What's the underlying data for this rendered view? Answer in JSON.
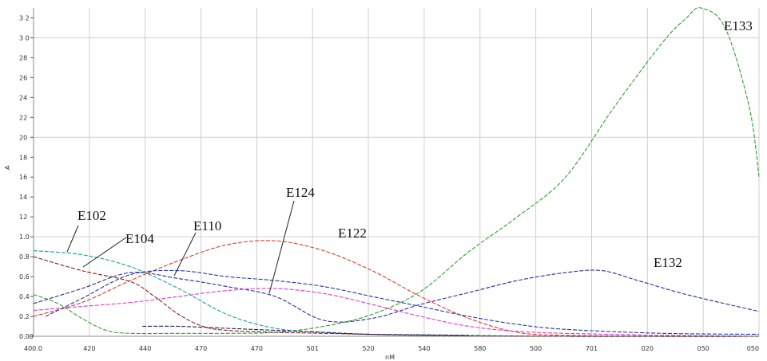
{
  "chart_data": {
    "type": "line",
    "title": "",
    "xlabel": "nM",
    "ylabel": "A",
    "x_tick_labels": [
      "400.0",
      "420",
      "440",
      "470",
      "470",
      "501",
      "520",
      "540",
      "580",
      "500",
      "701",
      "020",
      "050",
      "050"
    ],
    "y_tick_labels": [
      "0.00",
      "0.2",
      "0.4",
      "0.6",
      "0.8",
      "1.0",
      "12",
      "14",
      "16",
      "18",
      "20",
      "22",
      "24",
      "26",
      "28",
      "3 0",
      "3 2"
    ],
    "ylim": [
      0,
      3.3
    ],
    "grid": true,
    "legend": "none",
    "series": [
      {
        "name": "E133",
        "color": "#2ca02c",
        "points": [
          [
            400,
            0.42
          ],
          [
            410,
            0.33
          ],
          [
            420,
            0.18
          ],
          [
            430,
            0.06
          ],
          [
            440,
            0.03
          ],
          [
            460,
            0.03
          ],
          [
            480,
            0.03
          ],
          [
            500,
            0.04
          ],
          [
            520,
            0.1
          ],
          [
            540,
            0.22
          ],
          [
            560,
            0.45
          ],
          [
            580,
            0.85
          ],
          [
            600,
            1.2
          ],
          [
            620,
            1.6
          ],
          [
            640,
            2.3
          ],
          [
            660,
            2.95
          ],
          [
            670,
            3.2
          ],
          [
            676,
            3.3
          ],
          [
            686,
            3.1
          ],
          [
            696,
            2.3
          ],
          [
            700,
            1.6
          ]
        ]
      },
      {
        "name": "E132",
        "color": "#2a2a9c",
        "points": [
          [
            400,
            0.33
          ],
          [
            420,
            0.48
          ],
          [
            440,
            0.64
          ],
          [
            460,
            0.58
          ],
          [
            480,
            0.5
          ],
          [
            500,
            0.4
          ],
          [
            520,
            0.16
          ],
          [
            540,
            0.18
          ],
          [
            560,
            0.32
          ],
          [
            580,
            0.44
          ],
          [
            600,
            0.56
          ],
          [
            620,
            0.64
          ],
          [
            635,
            0.66
          ],
          [
            650,
            0.56
          ],
          [
            670,
            0.42
          ],
          [
            700,
            0.25
          ]
        ]
      },
      {
        "name": "E122",
        "color": "#e03a2a",
        "points": [
          [
            400,
            0.2
          ],
          [
            420,
            0.34
          ],
          [
            440,
            0.56
          ],
          [
            460,
            0.76
          ],
          [
            480,
            0.92
          ],
          [
            500,
            0.96
          ],
          [
            520,
            0.86
          ],
          [
            540,
            0.66
          ],
          [
            560,
            0.4
          ],
          [
            580,
            0.18
          ],
          [
            600,
            0.04
          ],
          [
            620,
            0.01
          ],
          [
            660,
            0.0
          ],
          [
            700,
            0.0
          ]
        ]
      },
      {
        "name": "E124",
        "color": "#d93ad9",
        "points": [
          [
            400,
            0.26
          ],
          [
            420,
            0.3
          ],
          [
            440,
            0.34
          ],
          [
            460,
            0.4
          ],
          [
            480,
            0.46
          ],
          [
            500,
            0.48
          ],
          [
            520,
            0.43
          ],
          [
            540,
            0.32
          ],
          [
            560,
            0.2
          ],
          [
            580,
            0.1
          ],
          [
            600,
            0.05
          ],
          [
            620,
            0.03
          ],
          [
            660,
            0.01
          ],
          [
            700,
            0.0
          ]
        ]
      },
      {
        "name": "E110",
        "color": "#1f3aa6",
        "points": [
          [
            405,
            0.2
          ],
          [
            420,
            0.38
          ],
          [
            440,
            0.62
          ],
          [
            460,
            0.66
          ],
          [
            480,
            0.6
          ],
          [
            500,
            0.56
          ],
          [
            520,
            0.5
          ],
          [
            540,
            0.4
          ],
          [
            560,
            0.3
          ],
          [
            580,
            0.2
          ],
          [
            600,
            0.12
          ],
          [
            620,
            0.07
          ],
          [
            660,
            0.03
          ],
          [
            700,
            0.02
          ]
        ]
      },
      {
        "name": "E102",
        "color": "#1b9b9b",
        "points": [
          [
            400,
            0.86
          ],
          [
            420,
            0.82
          ],
          [
            440,
            0.7
          ],
          [
            460,
            0.48
          ],
          [
            480,
            0.22
          ],
          [
            500,
            0.08
          ],
          [
            520,
            0.04
          ],
          [
            540,
            0.02
          ],
          [
            580,
            0.01
          ],
          [
            620,
            0.0
          ],
          [
            700,
            0.0
          ]
        ]
      },
      {
        "name": "E104",
        "color": "#8a1c1c",
        "points": [
          [
            400,
            0.8
          ],
          [
            420,
            0.66
          ],
          [
            440,
            0.55
          ],
          [
            450,
            0.4
          ],
          [
            460,
            0.22
          ],
          [
            470,
            0.1
          ],
          [
            480,
            0.06
          ],
          [
            500,
            0.04
          ],
          [
            520,
            0.03
          ],
          [
            560,
            0.01
          ],
          [
            620,
            0.0
          ],
          [
            700,
            0.0
          ]
        ]
      },
      {
        "name": "",
        "color": "#1a1a5e",
        "points": [
          [
            445,
            0.1
          ],
          [
            460,
            0.1
          ],
          [
            480,
            0.08
          ],
          [
            500,
            0.06
          ],
          [
            520,
            0.04
          ],
          [
            540,
            0.02
          ],
          [
            580,
            0.01
          ]
        ]
      }
    ],
    "annotations": [
      "E102",
      "E104",
      "E110",
      "E124",
      "E122",
      "E132",
      "E133"
    ]
  }
}
